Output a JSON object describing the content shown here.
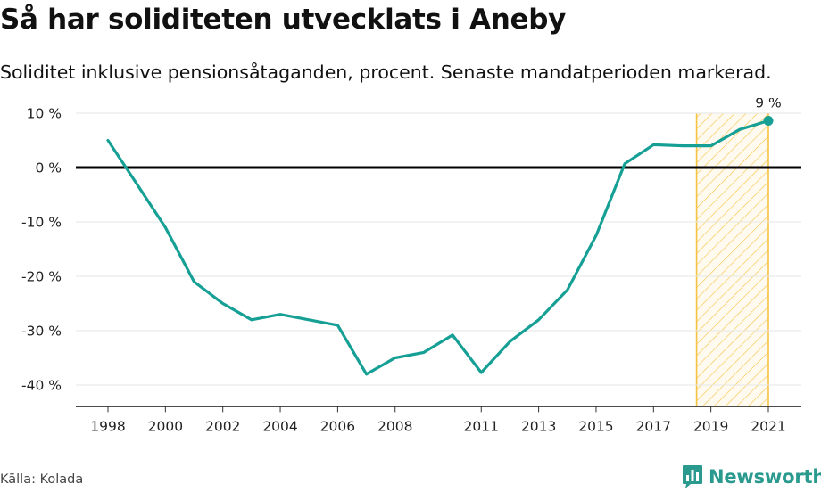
{
  "header": {
    "title": "Så har soliditeten utvecklats i Aneby",
    "subtitle": "Soliditet inklusive pensionsåtaganden, procent. Senaste mandatperioden markerad."
  },
  "footer": {
    "source": "Källa: Kolada",
    "brand": "Newsworthy"
  },
  "chart_data": {
    "type": "line",
    "title": "Så har soliditeten utvecklats i Aneby",
    "subtitle": "Soliditet inklusive pensionsåtaganden, procent. Senaste mandatperioden markerad.",
    "xlabel": "",
    "ylabel": "",
    "x": [
      1998,
      1999,
      2000,
      2001,
      2002,
      2003,
      2004,
      2005,
      2006,
      2007,
      2008,
      2009,
      2010,
      2011,
      2012,
      2013,
      2014,
      2015,
      2016,
      2017,
      2018,
      2019,
      2020,
      2021
    ],
    "series": [
      {
        "values": [
          5,
          -3,
          -11,
          -21,
          -25,
          -28,
          -27,
          -28,
          -29,
          -38,
          -35,
          -34,
          -30.8,
          -37.7,
          -32,
          -28,
          -22.5,
          -12.5,
          0.7,
          4.2,
          4,
          4,
          7,
          8.6
        ],
        "color": "#16a095"
      }
    ],
    "x_ticks": [
      1998,
      2000,
      2002,
      2004,
      2006,
      2008,
      2011,
      2013,
      2015,
      2017,
      2019,
      2021
    ],
    "x_tick_labels": [
      "1998",
      "2000",
      "2002",
      "2004",
      "2006",
      "2008",
      "2011",
      "2013",
      "2015",
      "2017",
      "2019",
      "2021"
    ],
    "y_ticks": [
      10,
      0,
      -10,
      -20,
      -30,
      -40
    ],
    "y_tick_labels": [
      "10 %",
      "0 %",
      "-10 %",
      "-20 %",
      "-30 %",
      "-40 %"
    ],
    "xlim": [
      1997,
      2022
    ],
    "ylim": [
      -44,
      10
    ],
    "grid": true,
    "highlight": {
      "x_start": 2018.5,
      "x_end": 2021,
      "color": "#f5c342"
    },
    "end_label": "9 %",
    "zero_line_color": "#000000",
    "grid_color": "#e6e6e6"
  }
}
